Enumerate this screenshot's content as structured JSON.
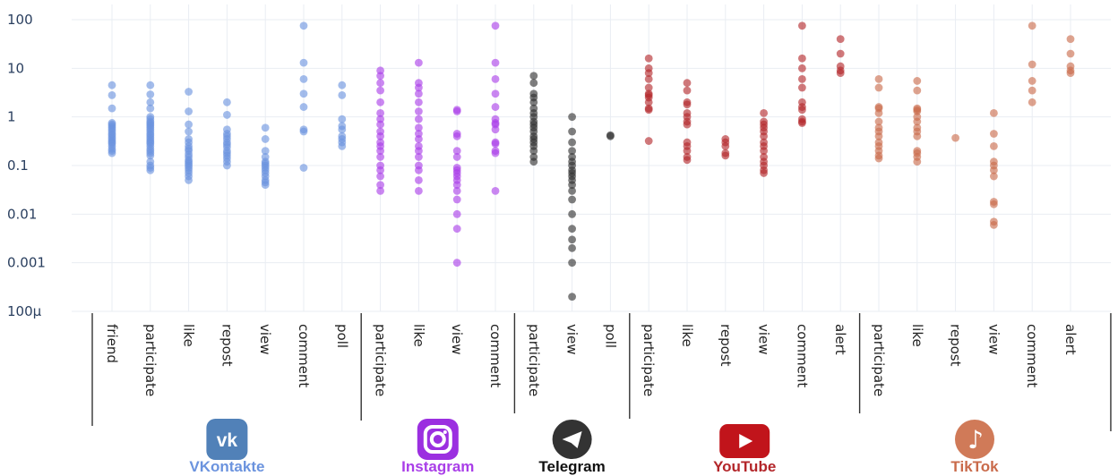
{
  "chart_data": {
    "type": "scatter",
    "title": "",
    "xlabel": "",
    "ylabel": "",
    "y_scale": "log",
    "ylim": [
      0.0001,
      100
    ],
    "y_ticks": [
      100,
      10,
      1,
      0.1,
      0.01,
      0.001,
      0.0001
    ],
    "y_tick_labels": [
      "100",
      "10",
      "1",
      "0.1",
      "0.01",
      "0.001",
      "100µ"
    ],
    "grid": true,
    "legend": "none",
    "platforms": [
      {
        "name": "VKontakte",
        "color": "#6b93de",
        "icon": "vk-logo",
        "categories": [
          {
            "label": "friend",
            "values": [
              4.5,
              2.8,
              1.5,
              0.75,
              0.7,
              0.65,
              0.6,
              0.55,
              0.5,
              0.45,
              0.42,
              0.38,
              0.35,
              0.32,
              0.3,
              0.28,
              0.25,
              0.22,
              0.2,
              0.18
            ]
          },
          {
            "label": "participate",
            "values": [
              4.5,
              2.9,
              2.0,
              1.5,
              1.0,
              0.9,
              0.8,
              0.75,
              0.7,
              0.65,
              0.6,
              0.55,
              0.5,
              0.45,
              0.42,
              0.38,
              0.35,
              0.32,
              0.3,
              0.28,
              0.25,
              0.22,
              0.2,
              0.18,
              0.16,
              0.12,
              0.1,
              0.09,
              0.08
            ]
          },
          {
            "label": "like",
            "values": [
              3.3,
              1.3,
              0.7,
              0.5,
              0.35,
              0.3,
              0.25,
              0.22,
              0.2,
              0.17,
              0.15,
              0.13,
              0.12,
              0.11,
              0.1,
              0.09,
              0.08,
              0.07,
              0.06,
              0.05
            ]
          },
          {
            "label": "repost",
            "values": [
              2.0,
              1.1,
              0.55,
              0.45,
              0.4,
              0.35,
              0.3,
              0.27,
              0.24,
              0.2,
              0.18,
              0.16,
              0.14,
              0.12,
              0.1
            ]
          },
          {
            "label": "view",
            "values": [
              0.6,
              0.35,
              0.2,
              0.15,
              0.12,
              0.11,
              0.1,
              0.09,
              0.08,
              0.07,
              0.06,
              0.05,
              0.045,
              0.04
            ]
          },
          {
            "label": "comment",
            "values": [
              75,
              13,
              6,
              3,
              1.6,
              0.55,
              0.5,
              0.09
            ]
          },
          {
            "label": "poll",
            "values": [
              4.5,
              2.8,
              0.9,
              0.65,
              0.55,
              0.4,
              0.35,
              0.3,
              0.25
            ]
          }
        ]
      },
      {
        "name": "Instagram",
        "color": "#a93ee8",
        "icon": "instagram-logo",
        "categories": [
          {
            "label": "participate",
            "values": [
              9,
              7,
              5,
              3.5,
              2,
              1.2,
              0.9,
              0.7,
              0.5,
              0.4,
              0.3,
              0.25,
              0.2,
              0.15,
              0.1,
              0.08,
              0.06,
              0.04,
              0.03
            ]
          },
          {
            "label": "like",
            "values": [
              13,
              5,
              4,
              3,
              2,
              1.3,
              0.9,
              0.6,
              0.45,
              0.35,
              0.25,
              0.2,
              0.15,
              0.1,
              0.08,
              0.05,
              0.03
            ]
          },
          {
            "label": "view",
            "values": [
              1.4,
              1.3,
              0.45,
              0.4,
              0.2,
              0.15,
              0.09,
              0.08,
              0.07,
              0.06,
              0.05,
              0.04,
              0.03,
              0.02,
              0.01,
              0.005,
              0.001
            ]
          },
          {
            "label": "comment",
            "values": [
              75,
              13,
              6,
              3,
              1.6,
              0.9,
              0.75,
              0.7,
              0.55,
              0.3,
              0.28,
              0.2,
              0.18,
              0.03
            ]
          }
        ]
      },
      {
        "name": "Telegram",
        "color": "#2e2e2e",
        "icon": "telegram-logo",
        "categories": [
          {
            "label": "participate",
            "values": [
              7,
              5,
              3,
              2.5,
              2,
              1.5,
              1.2,
              1,
              0.8,
              0.7,
              0.6,
              0.5,
              0.4,
              0.35,
              0.3,
              0.25,
              0.2,
              0.15,
              0.12
            ]
          },
          {
            "label": "view",
            "values": [
              1,
              0.5,
              0.3,
              0.2,
              0.15,
              0.12,
              0.1,
              0.08,
              0.07,
              0.06,
              0.05,
              0.04,
              0.03,
              0.02,
              0.01,
              0.005,
              0.003,
              0.002,
              0.001,
              0.0002
            ]
          },
          {
            "label": "poll",
            "values": [
              0.42,
              0.4
            ]
          }
        ]
      },
      {
        "name": "YouTube",
        "color": "#b3262a",
        "icon": "youtube-logo",
        "categories": [
          {
            "label": "participate",
            "values": [
              16,
              10,
              8,
              6,
              4,
              3,
              2.8,
              2.5,
              2,
              1.5,
              1.4,
              0.32
            ]
          },
          {
            "label": "like",
            "values": [
              5,
              3.5,
              2,
              1.8,
              1.2,
              1,
              0.8,
              0.7,
              0.3,
              0.25,
              0.2,
              0.15,
              0.13
            ]
          },
          {
            "label": "repost",
            "values": [
              0.35,
              0.3,
              0.25,
              0.18,
              0.16
            ]
          },
          {
            "label": "view",
            "values": [
              1.2,
              0.8,
              0.7,
              0.6,
              0.5,
              0.4,
              0.3,
              0.25,
              0.2,
              0.15,
              0.12,
              0.1,
              0.08,
              0.07
            ]
          },
          {
            "label": "comment",
            "values": [
              75,
              16,
              10,
              6,
              4,
              2,
              1.6,
              1.4,
              0.9,
              0.8,
              0.75
            ]
          },
          {
            "label": "alert",
            "values": [
              40,
              20,
              11,
              9,
              8
            ]
          }
        ]
      },
      {
        "name": "TikTok",
        "color": "#c96a4a",
        "icon": "tiktok-logo",
        "categories": [
          {
            "label": "participate",
            "values": [
              6,
              4,
              1.6,
              1.5,
              1.2,
              0.8,
              0.6,
              0.5,
              0.4,
              0.3,
              0.25,
              0.2,
              0.16,
              0.14
            ]
          },
          {
            "label": "like",
            "values": [
              5.5,
              3.5,
              1.5,
              1.4,
              1.3,
              1,
              0.8,
              0.6,
              0.5,
              0.4,
              0.2,
              0.18,
              0.15,
              0.12
            ]
          },
          {
            "label": "repost",
            "values": [
              0.37
            ]
          },
          {
            "label": "view",
            "values": [
              1.2,
              0.45,
              0.25,
              0.12,
              0.1,
              0.08,
              0.06,
              0.018,
              0.016,
              0.007,
              0.006
            ]
          },
          {
            "label": "comment",
            "values": [
              75,
              12,
              5.5,
              3.5,
              2
            ]
          },
          {
            "label": "alert",
            "values": [
              40,
              20,
              11,
              9,
              8
            ]
          }
        ]
      }
    ]
  }
}
